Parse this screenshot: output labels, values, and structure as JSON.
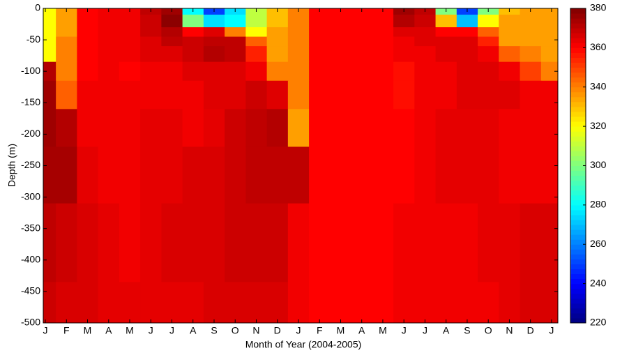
{
  "chart_data": {
    "type": "heatmap",
    "x_label": "Month of Year (2004-2005)",
    "y_label": "Depth (m)",
    "x": [
      0,
      1,
      2,
      3,
      4,
      5,
      6,
      7,
      8,
      9,
      10,
      11,
      12,
      13,
      14,
      15,
      16,
      17,
      18,
      19,
      20,
      21,
      22,
      23,
      24
    ],
    "depth_edges": [
      0,
      -10,
      -30,
      -45,
      -60,
      -85,
      -115,
      -160,
      -220,
      -310,
      -435,
      -500
    ],
    "z": [
      [
        320,
        335,
        360,
        362,
        362,
        370,
        375,
        280,
        250,
        275,
        310,
        330,
        340,
        360,
        360,
        360,
        360,
        375,
        370,
        300,
        250,
        300,
        330,
        335,
        335
      ],
      [
        320,
        335,
        360,
        362,
        362,
        368,
        378,
        300,
        275,
        280,
        310,
        330,
        340,
        360,
        360,
        360,
        360,
        372,
        368,
        330,
        270,
        320,
        335,
        335,
        335
      ],
      [
        320,
        335,
        360,
        362,
        362,
        368,
        372,
        360,
        365,
        340,
        320,
        335,
        340,
        360,
        360,
        360,
        360,
        365,
        365,
        360,
        360,
        345,
        335,
        335,
        335
      ],
      [
        320,
        340,
        360,
        362,
        362,
        365,
        370,
        368,
        370,
        370,
        345,
        335,
        340,
        360,
        360,
        360,
        360,
        362,
        365,
        365,
        365,
        355,
        335,
        335,
        335
      ],
      [
        320,
        340,
        360,
        362,
        362,
        365,
        365,
        368,
        372,
        370,
        355,
        335,
        340,
        360,
        360,
        360,
        360,
        362,
        362,
        365,
        365,
        362,
        345,
        340,
        335
      ],
      [
        372,
        340,
        360,
        362,
        360,
        362,
        362,
        365,
        365,
        365,
        362,
        340,
        340,
        360,
        360,
        360,
        360,
        358,
        362,
        362,
        365,
        365,
        362,
        350,
        340
      ],
      [
        375,
        345,
        362,
        362,
        362,
        362,
        362,
        362,
        365,
        365,
        368,
        365,
        340,
        360,
        360,
        360,
        360,
        358,
        362,
        362,
        365,
        365,
        365,
        362,
        362
      ],
      [
        375,
        372,
        362,
        362,
        362,
        364,
        364,
        362,
        364,
        368,
        370,
        372,
        335,
        360,
        360,
        360,
        360,
        360,
        362,
        364,
        364,
        364,
        362,
        362,
        362
      ],
      [
        374,
        374,
        364,
        362,
        362,
        364,
        364,
        366,
        366,
        368,
        370,
        370,
        370,
        360,
        360,
        360,
        360,
        360,
        362,
        364,
        364,
        364,
        362,
        362,
        362
      ],
      [
        370,
        368,
        366,
        364,
        362,
        364,
        366,
        366,
        366,
        368,
        368,
        368,
        362,
        360,
        360,
        360,
        360,
        362,
        362,
        362,
        362,
        364,
        364,
        366,
        366
      ],
      [
        368,
        366,
        366,
        364,
        364,
        364,
        364,
        364,
        366,
        366,
        366,
        366,
        362,
        360,
        360,
        360,
        360,
        362,
        362,
        362,
        362,
        362,
        364,
        366,
        366
      ]
    ],
    "xlim": [
      -0.1,
      24.3
    ],
    "xticks": [
      {
        "value": 0,
        "label": "J"
      },
      {
        "value": 1,
        "label": "F"
      },
      {
        "value": 2,
        "label": "M"
      },
      {
        "value": 3,
        "label": "A"
      },
      {
        "value": 4,
        "label": "M"
      },
      {
        "value": 5,
        "label": "J"
      },
      {
        "value": 6,
        "label": "J"
      },
      {
        "value": 7,
        "label": "A"
      },
      {
        "value": 8,
        "label": "S"
      },
      {
        "value": 9,
        "label": "O"
      },
      {
        "value": 10,
        "label": "N"
      },
      {
        "value": 11,
        "label": "D"
      },
      {
        "value": 12,
        "label": "J"
      },
      {
        "value": 13,
        "label": "F"
      },
      {
        "value": 14,
        "label": "M"
      },
      {
        "value": 15,
        "label": "A"
      },
      {
        "value": 16,
        "label": "M"
      },
      {
        "value": 17,
        "label": "J"
      },
      {
        "value": 18,
        "label": "J"
      },
      {
        "value": 19,
        "label": "A"
      },
      {
        "value": 20,
        "label": "S"
      },
      {
        "value": 21,
        "label": "O"
      },
      {
        "value": 22,
        "label": "N"
      },
      {
        "value": 23,
        "label": "D"
      },
      {
        "value": 24,
        "label": "J"
      }
    ],
    "ylim": [
      -500,
      0
    ],
    "yticks": [
      0,
      -50,
      -100,
      -150,
      -200,
      -250,
      -300,
      -350,
      -400,
      -450,
      -500
    ],
    "colormap": "jet",
    "clim": [
      220,
      380
    ],
    "cticks": [
      220,
      240,
      260,
      280,
      300,
      320,
      340,
      360,
      380
    ]
  }
}
